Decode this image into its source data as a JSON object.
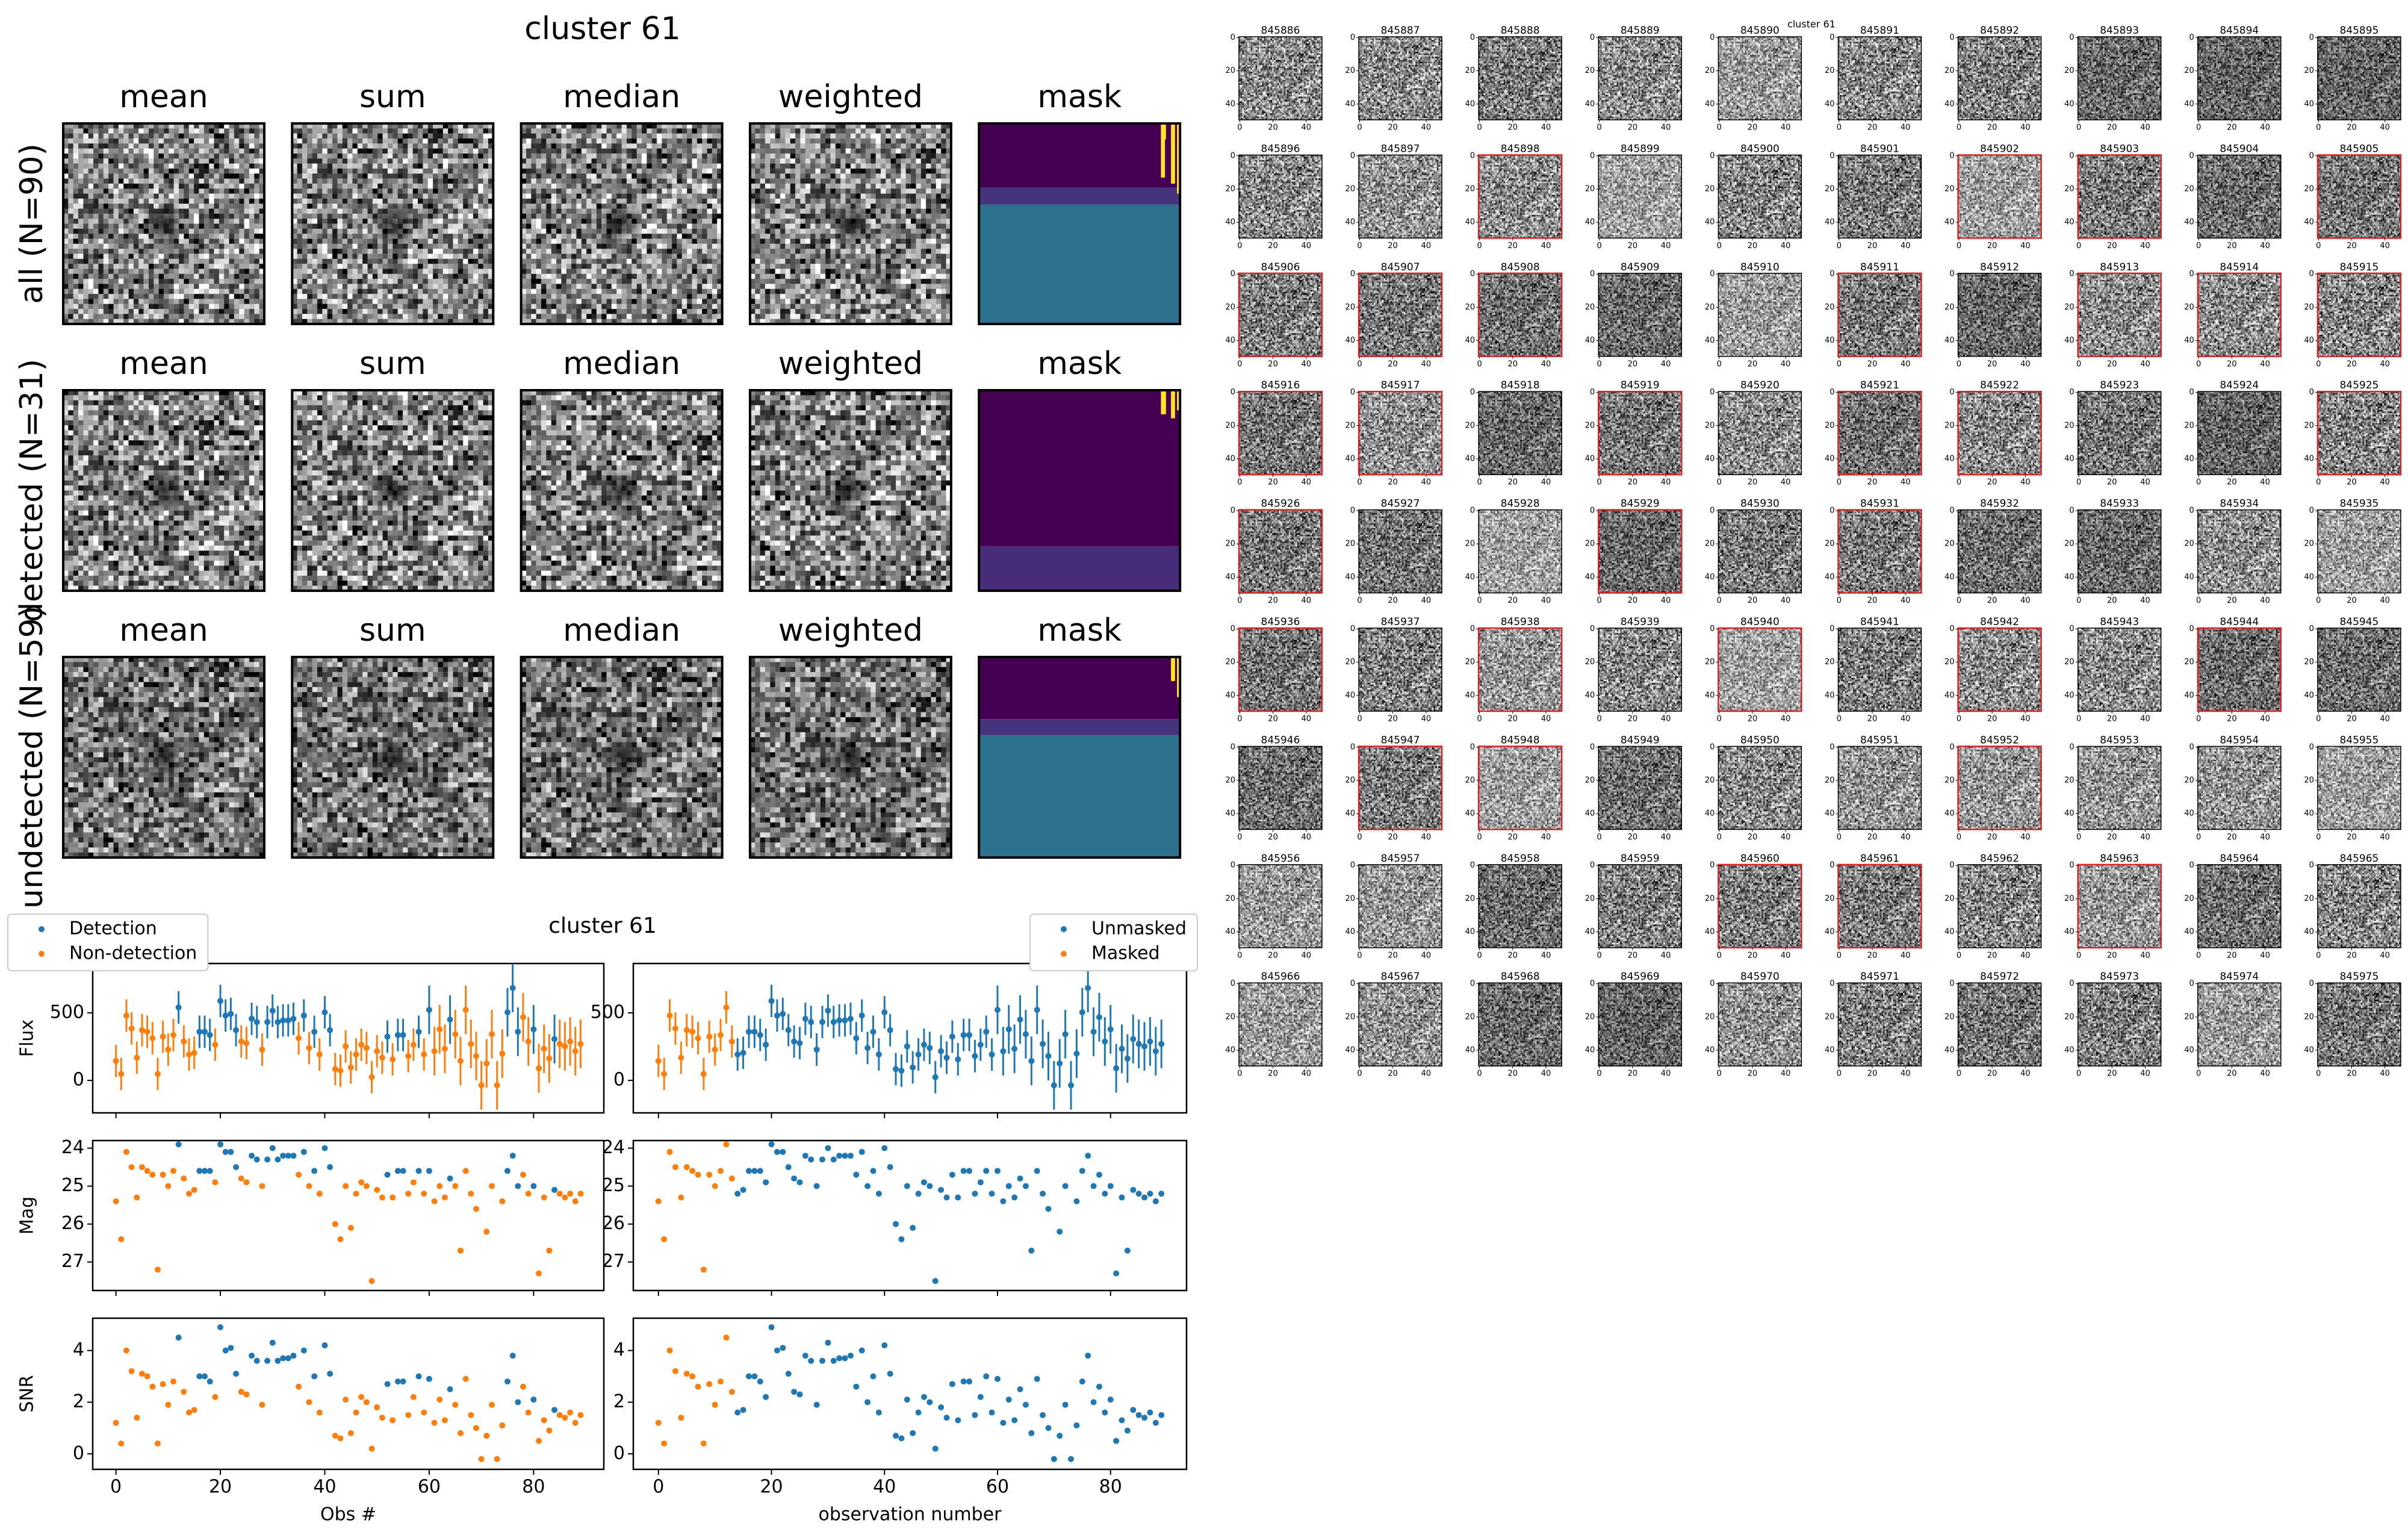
{
  "stack_figure": {
    "title": "cluster 61",
    "column_titles": [
      "mean",
      "sum",
      "median",
      "weighted",
      "mask"
    ],
    "row_labels": [
      "all (N=90)",
      "detected (N=31)",
      "undetected (N=59)"
    ]
  },
  "chart_data": {
    "type": "errorbar",
    "title": "cluster 61",
    "x": [
      0,
      1,
      2,
      3,
      4,
      5,
      6,
      7,
      8,
      9,
      10,
      11,
      12,
      13,
      14,
      15,
      16,
      17,
      18,
      19,
      20,
      21,
      22,
      23,
      24,
      25,
      26,
      27,
      28,
      29,
      30,
      31,
      32,
      33,
      34,
      35,
      36,
      37,
      38,
      39,
      40,
      41,
      42,
      43,
      44,
      45,
      46,
      47,
      48,
      49,
      50,
      51,
      52,
      53,
      54,
      55,
      56,
      57,
      58,
      59,
      60,
      61,
      62,
      63,
      64,
      65,
      66,
      67,
      68,
      69,
      70,
      71,
      72,
      73,
      74,
      75,
      76,
      77,
      78,
      79,
      80,
      81,
      82,
      83,
      84,
      85,
      86,
      87,
      88,
      89
    ],
    "xlim": [
      -4.45,
      93.45
    ],
    "xticks": [
      0,
      20,
      40,
      60,
      80
    ],
    "panels": [
      {
        "ylabel": "Flux",
        "ylim": [
          -240,
          865
        ],
        "yticks": [
          0,
          500
        ],
        "values": [
          144,
          48,
          480,
          384,
          168,
          372,
          360,
          312,
          48,
          324,
          228,
          336,
          540,
          288,
          192,
          204,
          360,
          360,
          336,
          264,
          588,
          480,
          492,
          372,
          288,
          276,
          456,
          432,
          228,
          432,
          516,
          432,
          444,
          444,
          456,
          312,
          480,
          240,
          360,
          192,
          504,
          372,
          84,
          72,
          252,
          96,
          192,
          264,
          240,
          24,
          216,
          168,
          324,
          156,
          336,
          336,
          180,
          264,
          360,
          192,
          522,
          216,
          378,
          234,
          450,
          342,
          144,
          522,
          270,
          180,
          -36,
          126,
          342,
          -36,
          198,
          504,
          684,
          360,
          468,
          288,
          378,
          90,
          234,
          162,
          306,
          270,
          252,
          288,
          216,
          270
        ],
        "errors": [
          120,
          120,
          120,
          120,
          120,
          120,
          120,
          120,
          120,
          120,
          120,
          120,
          120,
          120,
          120,
          120,
          120,
          120,
          120,
          120,
          120,
          120,
          120,
          120,
          120,
          120,
          120,
          120,
          120,
          120,
          120,
          120,
          120,
          120,
          120,
          120,
          120,
          120,
          120,
          120,
          120,
          120,
          120,
          120,
          120,
          120,
          120,
          120,
          120,
          120,
          120,
          120,
          120,
          120,
          120,
          120,
          120,
          120,
          120,
          120,
          180,
          180,
          180,
          180,
          180,
          180,
          180,
          180,
          180,
          180,
          180,
          180,
          180,
          180,
          180,
          180,
          180,
          180,
          180,
          180,
          180,
          180,
          180,
          180,
          180,
          180,
          180,
          180,
          180,
          180
        ]
      },
      {
        "ylabel": "Mag",
        "ylim": [
          27.75,
          23.8
        ],
        "yticks": [
          24,
          25,
          26,
          27
        ],
        "values": [
          25.4,
          26.4,
          24.1,
          24.5,
          25.3,
          24.5,
          24.6,
          24.7,
          27.2,
          24.7,
          25.0,
          24.6,
          23.9,
          24.8,
          25.2,
          25.1,
          24.6,
          24.6,
          24.6,
          24.9,
          23.9,
          24.1,
          24.1,
          24.5,
          24.8,
          24.9,
          24.2,
          24.3,
          25.0,
          24.3,
          24.0,
          24.3,
          24.2,
          24.2,
          24.2,
          24.7,
          24.1,
          25.0,
          24.6,
          25.2,
          24.0,
          24.5,
          26.0,
          26.4,
          25.0,
          26.1,
          25.2,
          24.9,
          25.0,
          27.5,
          25.1,
          25.3,
          24.7,
          25.3,
          24.6,
          24.6,
          25.2,
          24.9,
          24.6,
          25.2,
          24.6,
          25.4,
          25.0,
          25.3,
          24.8,
          25.0,
          26.7,
          24.6,
          25.2,
          25.6,
          null,
          26.2,
          25.0,
          null,
          25.4,
          24.6,
          24.2,
          25.0,
          24.7,
          25.2,
          25.0,
          27.3,
          25.3,
          26.7,
          25.1,
          25.2,
          25.3,
          25.2,
          25.4,
          25.2
        ]
      },
      {
        "ylabel": "SNR",
        "ylim": [
          -0.6,
          5.25
        ],
        "yticks": [
          0,
          2,
          4
        ],
        "values": [
          1.2,
          0.4,
          4.0,
          3.2,
          1.4,
          3.1,
          3.0,
          2.6,
          0.4,
          2.7,
          1.9,
          2.8,
          4.5,
          2.4,
          1.6,
          1.7,
          3.0,
          3.0,
          2.8,
          2.2,
          4.9,
          4.0,
          4.1,
          3.1,
          2.4,
          2.3,
          3.8,
          3.6,
          1.9,
          3.6,
          4.3,
          3.6,
          3.7,
          3.7,
          3.8,
          2.6,
          4.0,
          2.0,
          3.0,
          1.6,
          4.2,
          3.1,
          0.7,
          0.6,
          2.1,
          0.8,
          1.6,
          2.2,
          2.0,
          0.2,
          1.8,
          1.4,
          2.7,
          1.3,
          2.8,
          2.8,
          1.5,
          2.2,
          3.0,
          1.6,
          2.9,
          1.2,
          2.1,
          1.3,
          2.5,
          1.9,
          0.8,
          2.9,
          1.5,
          1.0,
          -0.2,
          0.7,
          1.9,
          -0.2,
          1.1,
          2.8,
          3.8,
          2.0,
          2.6,
          1.6,
          2.1,
          0.5,
          1.3,
          0.9,
          1.7,
          1.5,
          1.4,
          1.6,
          1.2,
          1.5
        ]
      }
    ],
    "columns": [
      {
        "xlabel": "Obs #",
        "legend": "upper left",
        "series": [
          {
            "name": "Detection",
            "color": "#1f77b4"
          },
          {
            "name": "Non-detection",
            "color": "#ff7f0e"
          }
        ],
        "groups": [
          1,
          1,
          1,
          1,
          1,
          1,
          1,
          1,
          1,
          1,
          1,
          1,
          0,
          1,
          1,
          1,
          0,
          0,
          0,
          1,
          0,
          0,
          0,
          0,
          1,
          1,
          0,
          0,
          1,
          0,
          0,
          0,
          0,
          0,
          0,
          1,
          0,
          1,
          0,
          1,
          0,
          0,
          1,
          1,
          1,
          1,
          1,
          1,
          1,
          1,
          1,
          1,
          0,
          1,
          0,
          0,
          1,
          1,
          0,
          1,
          0,
          1,
          1,
          1,
          0,
          1,
          1,
          1,
          1,
          1,
          1,
          1,
          1,
          1,
          1,
          0,
          0,
          0,
          1,
          1,
          0,
          1,
          1,
          1,
          0,
          1,
          1,
          1,
          1,
          1
        ]
      },
      {
        "xlabel": "observation number",
        "legend": "upper right",
        "series": [
          {
            "name": "Unmasked",
            "color": "#1f77b4"
          },
          {
            "name": "Masked",
            "color": "#ff7f0e"
          }
        ],
        "groups": [
          1,
          1,
          1,
          1,
          1,
          1,
          1,
          1,
          1,
          1,
          1,
          1,
          1,
          1,
          0,
          0,
          0,
          0,
          0,
          0,
          0,
          0,
          0,
          0,
          0,
          0,
          0,
          0,
          0,
          0,
          0,
          0,
          0,
          0,
          0,
          0,
          0,
          0,
          0,
          0,
          0,
          0,
          0,
          0,
          0,
          0,
          0,
          0,
          0,
          0,
          0,
          0,
          0,
          0,
          0,
          0,
          0,
          0,
          0,
          0,
          0,
          0,
          0,
          0,
          0,
          0,
          0,
          0,
          0,
          0,
          0,
          0,
          0,
          0,
          0,
          0,
          0,
          0,
          0,
          0,
          0,
          0,
          0,
          0,
          0,
          0,
          0,
          0,
          0,
          0
        ]
      }
    ]
  },
  "thumbnails": {
    "title": "cluster 61",
    "ids": [
      845886,
      845887,
      845888,
      845889,
      845890,
      845891,
      845892,
      845893,
      845894,
      845895,
      845896,
      845897,
      845898,
      845899,
      845900,
      845901,
      845902,
      845903,
      845904,
      845905,
      845906,
      845907,
      845908,
      845909,
      845910,
      845911,
      845912,
      845913,
      845914,
      845915,
      845916,
      845917,
      845918,
      845919,
      845920,
      845921,
      845922,
      845923,
      845924,
      845925,
      845926,
      845927,
      845928,
      845929,
      845930,
      845931,
      845932,
      845933,
      845934,
      845935,
      845936,
      845937,
      845938,
      845939,
      845940,
      845941,
      845942,
      845943,
      845944,
      845945,
      845946,
      845947,
      845948,
      845949,
      845950,
      845951,
      845952,
      845953,
      845954,
      845955,
      845956,
      845957,
      845958,
      845959,
      845960,
      845961,
      845962,
      845963,
      845964,
      845965,
      845966,
      845967,
      845968,
      845969,
      845970,
      845971,
      845972,
      845973,
      845974,
      845975
    ],
    "highlight": [
      false,
      false,
      false,
      false,
      false,
      false,
      false,
      false,
      false,
      false,
      false,
      false,
      true,
      false,
      false,
      false,
      true,
      true,
      false,
      true,
      true,
      true,
      true,
      false,
      false,
      true,
      false,
      true,
      true,
      true,
      true,
      true,
      false,
      true,
      false,
      true,
      true,
      false,
      false,
      true,
      true,
      false,
      false,
      true,
      false,
      true,
      false,
      false,
      false,
      false,
      true,
      false,
      true,
      false,
      true,
      false,
      true,
      false,
      true,
      false,
      false,
      true,
      true,
      false,
      false,
      false,
      true,
      false,
      false,
      false,
      false,
      false,
      false,
      false,
      true,
      true,
      false,
      true,
      false,
      false,
      false,
      false,
      false,
      false,
      false,
      false,
      false,
      false,
      false,
      false
    ],
    "highlight_color": "#d62728",
    "lim": [
      -0.5,
      49.5
    ],
    "ticks": [
      0,
      20,
      40
    ]
  }
}
